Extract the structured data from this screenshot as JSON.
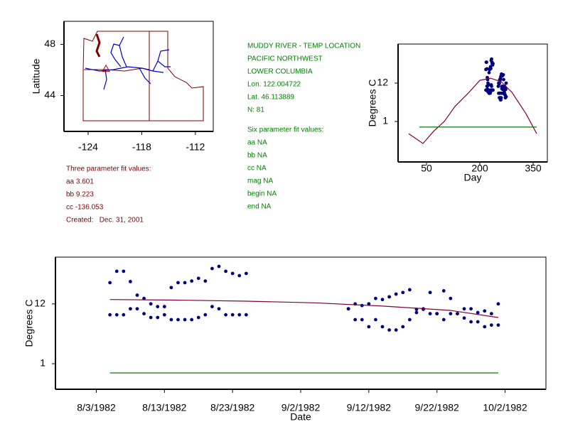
{
  "chart_data": [
    {
      "type": "map",
      "ylabel": "Latitude",
      "xlim": [
        -126.7,
        -110.0
      ],
      "xticks": [
        -124,
        -118,
        -112
      ],
      "ylim": [
        41.2,
        49.8
      ],
      "yticks": [
        48,
        44
      ],
      "series": [
        {
          "style": "marker",
          "color": "#a00000",
          "x": [
            -122.0
          ],
          "values": [
            46.1
          ]
        }
      ]
    },
    {
      "type": "scatter",
      "xlabel": "Day",
      "ylabel": "Degrees C",
      "xlim": [
        -30,
        390
      ],
      "xticks": [
        50,
        200,
        350
      ],
      "ylim": [
        -10.6,
        23.2
      ],
      "yticks": [
        12,
        1
      ],
      "x": [
        217,
        218,
        219,
        220,
        221,
        222,
        223,
        224,
        225,
        226,
        227,
        228,
        229,
        230,
        231,
        232,
        233,
        234,
        235,
        236,
        237,
        252,
        253,
        254,
        255,
        256,
        257,
        258,
        259,
        260,
        261,
        262,
        263,
        264,
        265,
        266,
        267,
        268,
        269,
        270,
        271,
        272,
        273,
        274
      ],
      "series": [
        {
          "style": "points",
          "color": "#00007f",
          "values": [
            15.9,
            18.0,
            18.0,
            16.1,
            13.6,
            13.0,
            12.0,
            11.5,
            11.5,
            15.0,
            15.9,
            15.9,
            16.2,
            16.7,
            16.2,
            18.5,
            18.9,
            18.0,
            17.6,
            17.2,
            17.6,
            11.1,
            12.0,
            11.7,
            12.0,
            13.0,
            12.8,
            13.3,
            13.8,
            14.1,
            14.6,
            11.0,
            11.1,
            14.1,
            10.2,
            14.4,
            13.0,
            10.2,
            11.1,
            11.1,
            10.4,
            10.7,
            10.2,
            12.0
          ]
        },
        {
          "style": "points",
          "color": "#00007f",
          "values": [
            10.0,
            10.0,
            10.0,
            11.1,
            11.1,
            10.2,
            9.5,
            9.5,
            10.0,
            9.1,
            9.1,
            9.1,
            9.1,
            9.5,
            10.0,
            11.5,
            11.1,
            10.0,
            10.0,
            10.0,
            10.0,
            11.1,
            9.1,
            9.1,
            7.8,
            9.1,
            7.8,
            7.2,
            7.2,
            7.8,
            9.1,
            10.4,
            11.0,
            10.2,
            10.2,
            9.1,
            10.2,
            10.2,
            9.4,
            8.7,
            8.7,
            7.8,
            8.1,
            8.1
          ]
        },
        {
          "style": "line",
          "color": "#800040",
          "x": [
            0,
            20,
            40,
            70,
            100,
            130,
            170,
            200,
            230,
            260,
            290,
            330,
            360
          ],
          "values": [
            -2.5,
            -3.9,
            -5.3,
            -1.8,
            1.0,
            5.3,
            9.4,
            12.8,
            13.4,
            12.4,
            9.4,
            3.2,
            -2.5
          ]
        },
        {
          "style": "line",
          "color": "#008000",
          "x": [
            30,
            360
          ],
          "values": [
            -0.6,
            -0.6
          ]
        }
      ]
    },
    {
      "type": "scatter",
      "xlabel": "Date",
      "ylabel": "Degrees C",
      "xlim": [
        "1982-07-28",
        "1982-10-08"
      ],
      "xticks": [
        {
          "value": "1982-08-03",
          "label": "8/3/1982"
        },
        {
          "value": "1982-08-13",
          "label": "8/13/1982"
        },
        {
          "value": "1982-08-23",
          "label": "8/23/1982"
        },
        {
          "value": "1982-09-02",
          "label": "9/2/1982"
        },
        {
          "value": "1982-09-12",
          "label": "9/12/1982"
        },
        {
          "value": "1982-09-22",
          "label": "9/22/1982"
        },
        {
          "value": "1982-10-02",
          "label": "10/2/1982"
        }
      ],
      "ylim": [
        -3.7,
        20.6
      ],
      "yticks": [
        12,
        1
      ],
      "x": [
        "1982-08-05",
        "1982-08-06",
        "1982-08-07",
        "1982-08-08",
        "1982-08-09",
        "1982-08-10",
        "1982-08-11",
        "1982-08-12",
        "1982-08-13",
        "1982-08-14",
        "1982-08-15",
        "1982-08-16",
        "1982-08-17",
        "1982-08-18",
        "1982-08-19",
        "1982-08-20",
        "1982-08-21",
        "1982-08-22",
        "1982-08-23",
        "1982-08-24",
        "1982-08-25",
        "1982-09-09",
        "1982-09-10",
        "1982-09-11",
        "1982-09-12",
        "1982-09-13",
        "1982-09-14",
        "1982-09-15",
        "1982-09-16",
        "1982-09-17",
        "1982-09-18",
        "1982-09-19",
        "1982-09-20",
        "1982-09-21",
        "1982-09-22",
        "1982-09-23",
        "1982-09-24",
        "1982-09-25",
        "1982-09-26",
        "1982-09-27",
        "1982-09-28",
        "1982-09-29",
        "1982-09-30",
        "1982-10-01"
      ],
      "series": [
        {
          "style": "points",
          "color": "#00007f",
          "values": [
            15.9,
            18.0,
            18.0,
            16.1,
            13.6,
            13.0,
            12.0,
            11.5,
            11.5,
            15.0,
            15.9,
            15.9,
            16.2,
            16.7,
            16.2,
            18.5,
            18.9,
            18.0,
            17.6,
            17.2,
            17.6,
            11.1,
            12.0,
            11.7,
            12.0,
            13.0,
            12.8,
            13.3,
            13.8,
            14.1,
            14.6,
            11.0,
            11.1,
            14.1,
            10.2,
            14.4,
            13.0,
            10.2,
            11.1,
            11.1,
            10.4,
            10.7,
            10.2,
            12.0
          ]
        },
        {
          "style": "points",
          "color": "#00007f",
          "values": [
            10.0,
            10.0,
            10.0,
            11.1,
            11.1,
            10.2,
            9.5,
            9.5,
            10.0,
            9.1,
            9.1,
            9.1,
            9.1,
            9.5,
            10.0,
            11.5,
            11.1,
            10.0,
            10.0,
            10.0,
            10.0,
            11.1,
            9.1,
            9.1,
            7.8,
            9.1,
            7.8,
            7.2,
            7.2,
            7.8,
            9.1,
            10.4,
            11.0,
            10.2,
            10.2,
            9.1,
            10.2,
            10.2,
            9.4,
            8.7,
            8.7,
            7.8,
            8.1,
            8.1
          ]
        },
        {
          "style": "line",
          "color": "#800040",
          "x": [
            "1982-08-05",
            "1982-08-15",
            "1982-08-25",
            "1982-09-04",
            "1982-09-14",
            "1982-09-24",
            "1982-10-01"
          ],
          "values": [
            12.8,
            12.7,
            12.5,
            12.2,
            11.6,
            10.8,
            9.5
          ]
        },
        {
          "style": "line",
          "color": "#008000",
          "x": [
            "1982-08-05",
            "1982-10-01"
          ],
          "values": [
            -0.7,
            -0.7
          ]
        }
      ]
    }
  ],
  "site_info": [
    "MUDDY RIVER - TEMP LOCATION",
    "PACIFIC NORTHWEST",
    "LOWER COLUMBIA",
    "Lon. 122.004722",
    "Lat. 46.113889",
    "N: 81"
  ],
  "six_parameter_fit": {
    "title": "Six parameter fit values:",
    "lines": [
      "aa NA",
      "bb NA",
      "cc NA",
      "mag NA",
      "begin NA",
      "end NA"
    ]
  },
  "three_parameter_fit": {
    "title": "Three parameter fit values:",
    "lines": [
      "aa 3.601",
      "bb 9.223",
      "cc -136.053",
      "Created:   Dec. 31, 2001"
    ]
  }
}
